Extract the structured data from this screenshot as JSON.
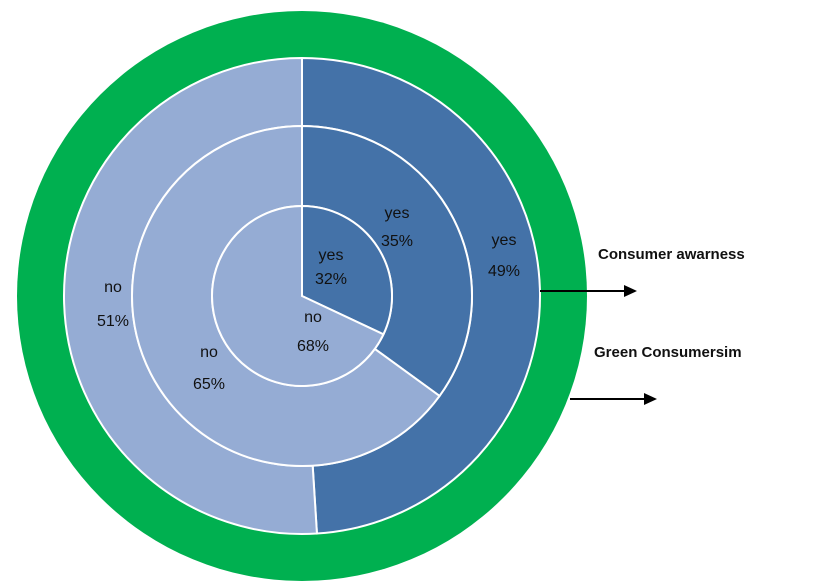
{
  "chart_data": {
    "type": "pie",
    "ring_color": "#00B050",
    "colors": {
      "yes": "#4472A8",
      "no": "#95ACD4"
    },
    "rings": [
      {
        "level": "inner",
        "slices": [
          {
            "category": "yes",
            "pct": "32%",
            "value": 32
          },
          {
            "category": "no",
            "pct": "68%",
            "value": 68
          }
        ]
      },
      {
        "level": "middle",
        "slices": [
          {
            "category": "yes",
            "pct": "35%",
            "value": 35
          },
          {
            "category": "no",
            "pct": "65%",
            "value": 65
          }
        ]
      },
      {
        "level": "outer",
        "slices": [
          {
            "category": "yes",
            "pct": "49%",
            "value": 49
          },
          {
            "category": "no",
            "pct": "51%",
            "value": 51
          }
        ]
      }
    ],
    "annotations": [
      "Consumer awarness",
      "Green Consumersim"
    ]
  }
}
